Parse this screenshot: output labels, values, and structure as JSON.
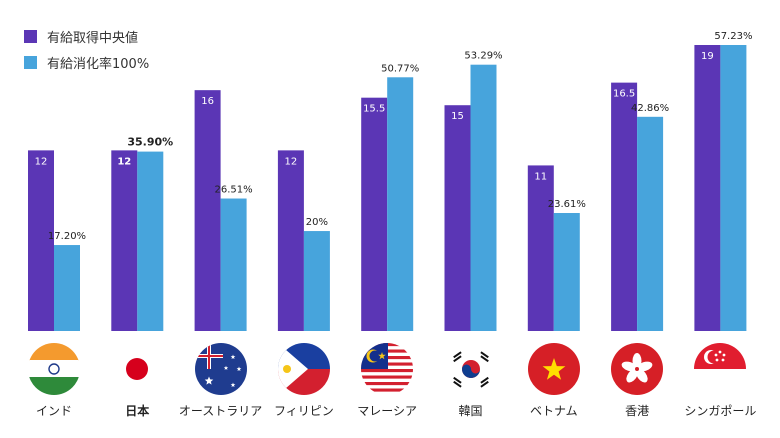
{
  "chart_data": {
    "type": "bar",
    "categories": [
      "インド",
      "日本",
      "オーストラリア",
      "フィリピン",
      "マレーシア",
      "韓国",
      "ベトナム",
      "香港",
      "シンガポール"
    ],
    "highlight_category": "日本",
    "series": [
      {
        "name": "有給取得中央値",
        "color": "#5b36b5",
        "values": [
          12,
          12,
          16,
          12,
          15.5,
          15,
          11,
          16.5,
          19
        ],
        "labels": [
          "12",
          "12",
          "16",
          "12",
          "15.5",
          "15",
          "11",
          "16.5",
          "19"
        ]
      },
      {
        "name": "有給消化率100%",
        "color": "#47a4dc",
        "values": [
          17.2,
          35.9,
          26.51,
          20,
          50.77,
          53.29,
          23.61,
          42.86,
          57.23
        ],
        "labels": [
          "17.20%",
          "35.90%",
          "26.51%",
          "20%",
          "50.77%",
          "53.29%",
          "23.61%",
          "42.86%",
          "57.23%"
        ]
      }
    ],
    "legend_position": "top-left",
    "grid": false
  },
  "flags": [
    "india-flag-icon",
    "japan-flag-icon",
    "australia-flag-icon",
    "philippines-flag-icon",
    "malaysia-flag-icon",
    "south-korea-flag-icon",
    "vietnam-flag-icon",
    "hong-kong-flag-icon",
    "singapore-flag-icon"
  ]
}
